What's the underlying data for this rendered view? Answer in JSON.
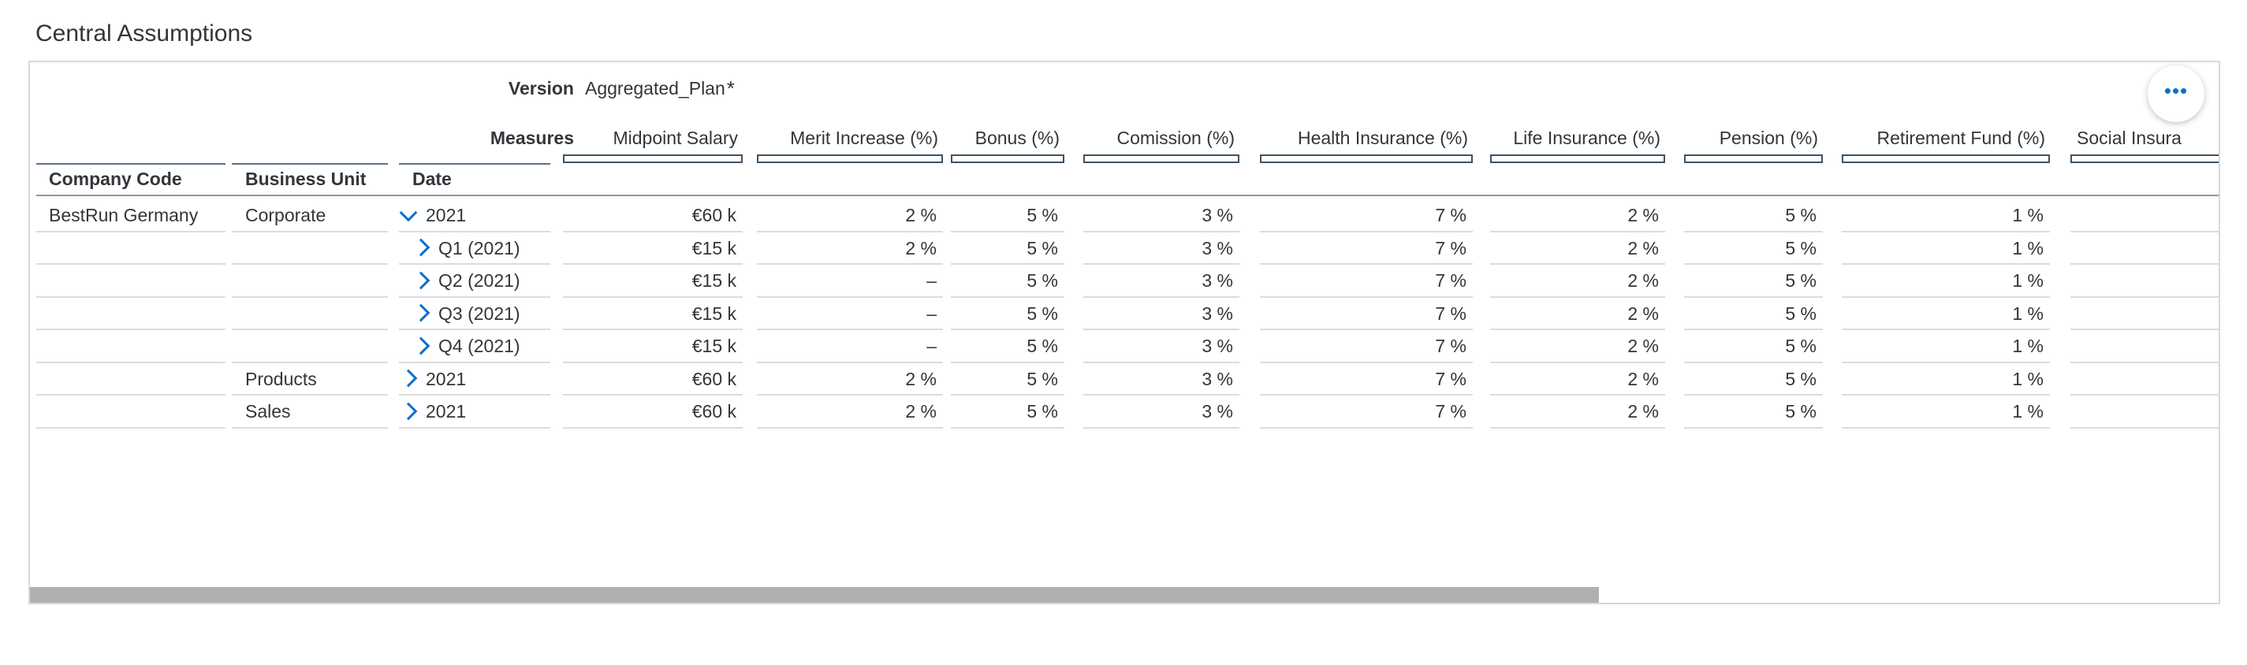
{
  "page_title": "Central Assumptions",
  "header": {
    "version_label": "Version",
    "version_value": "Aggregated_Plan",
    "version_star": "*",
    "measures_label": "Measures",
    "dim_company": "Company Code",
    "dim_business_unit": "Business Unit",
    "dim_date": "Date"
  },
  "measures": [
    "Midpoint Salary",
    "Merit Increase (%)",
    "Bonus (%)",
    "Comission (%)",
    "Health Insurance (%)",
    "Life Insurance (%)",
    "Pension (%)",
    "Retirement Fund (%)",
    "Social Insura"
  ],
  "rows": [
    {
      "company": "BestRun Germany",
      "unit": "Corporate",
      "date": "2021",
      "expanded": true,
      "indent": false,
      "values": [
        "€60 k",
        "2 %",
        "5 %",
        "3 %",
        "7 %",
        "2 %",
        "5 %",
        "1 %",
        ""
      ]
    },
    {
      "company": "",
      "unit": "",
      "date": "Q1 (2021)",
      "expanded": false,
      "indent": true,
      "values": [
        "€15 k",
        "2 %",
        "5 %",
        "3 %",
        "7 %",
        "2 %",
        "5 %",
        "1 %",
        ""
      ]
    },
    {
      "company": "",
      "unit": "",
      "date": "Q2 (2021)",
      "expanded": false,
      "indent": true,
      "values": [
        "€15 k",
        "–",
        "5 %",
        "3 %",
        "7 %",
        "2 %",
        "5 %",
        "1 %",
        ""
      ]
    },
    {
      "company": "",
      "unit": "",
      "date": "Q3 (2021)",
      "expanded": false,
      "indent": true,
      "values": [
        "€15 k",
        "–",
        "5 %",
        "3 %",
        "7 %",
        "2 %",
        "5 %",
        "1 %",
        ""
      ]
    },
    {
      "company": "",
      "unit": "",
      "date": "Q4 (2021)",
      "expanded": false,
      "indent": true,
      "values": [
        "€15 k",
        "–",
        "5 %",
        "3 %",
        "7 %",
        "2 %",
        "5 %",
        "1 %",
        ""
      ]
    },
    {
      "company": "",
      "unit": "Products",
      "date": "2021",
      "expanded": false,
      "indent": false,
      "values": [
        "€60 k",
        "2 %",
        "5 %",
        "3 %",
        "7 %",
        "2 %",
        "5 %",
        "1 %",
        ""
      ]
    },
    {
      "company": "",
      "unit": "Sales",
      "date": "2021",
      "expanded": false,
      "indent": false,
      "values": [
        "€60 k",
        "2 %",
        "5 %",
        "3 %",
        "7 %",
        "2 %",
        "5 %",
        "1 %",
        ""
      ]
    }
  ],
  "more_button_icon": "more-horizontal-icon",
  "colors": {
    "accent": "#0a6ed1",
    "header_line": "#5b738b",
    "grid_line": "#dcdcdc",
    "scroll_thumb": "#b0b0b0"
  }
}
